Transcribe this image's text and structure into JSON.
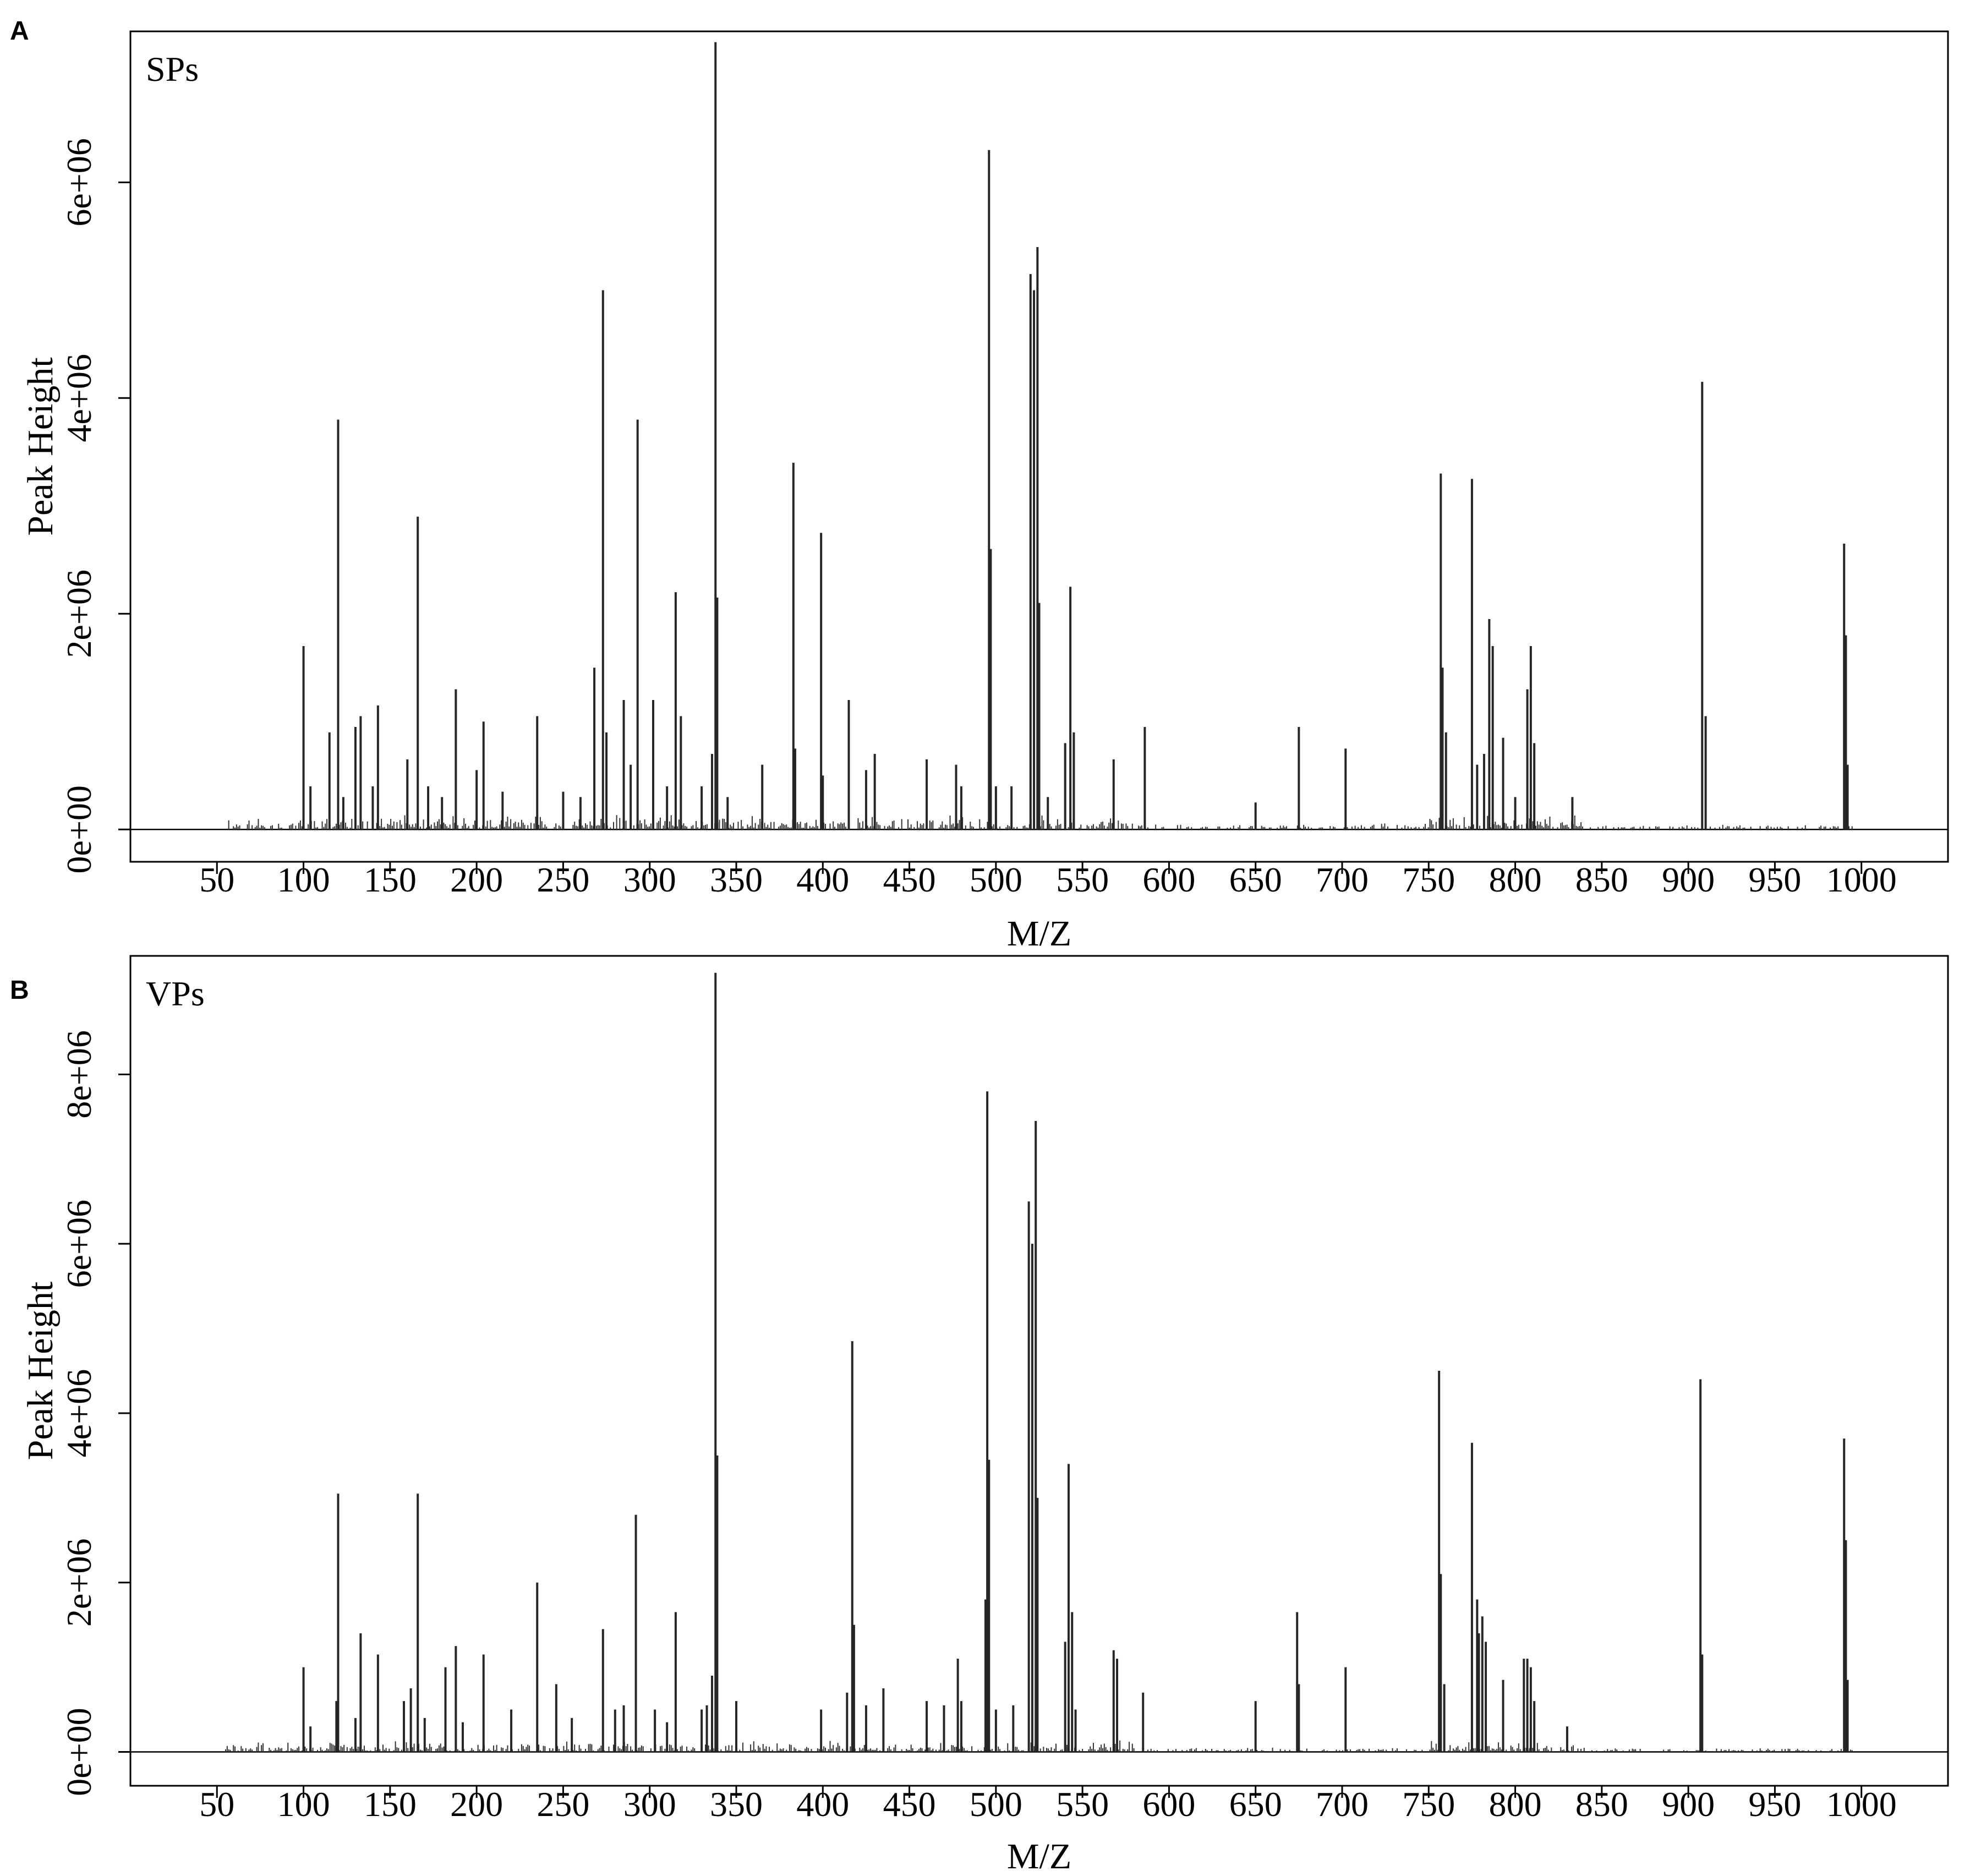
{
  "chart_data": [
    {
      "panel": "A",
      "label": "SPs",
      "type": "bar",
      "xlabel": "M/Z",
      "ylabel": "Peak Height",
      "xlim": [
        0,
        1050
      ],
      "ylim": [
        -300000,
        7400000
      ],
      "xticks": [
        50,
        100,
        150,
        200,
        250,
        300,
        350,
        400,
        450,
        500,
        550,
        600,
        650,
        700,
        750,
        800,
        850,
        900,
        950,
        1000
      ],
      "xtick_labels": [
        "50",
        "100",
        "150",
        "200",
        "250",
        "300",
        "350",
        "400",
        "450",
        "500",
        "550",
        "600",
        "650",
        "700",
        "750",
        "800",
        "850",
        "900",
        "950",
        "1000"
      ],
      "yticks": [
        0,
        2000000,
        4000000,
        6000000
      ],
      "ytick_labels": [
        "0e+00",
        "2e+06",
        "4e+06",
        "6e+06"
      ],
      "noise_seed": 11,
      "peaks": [
        [
          100,
          1700000
        ],
        [
          104,
          400000
        ],
        [
          115,
          900000
        ],
        [
          120,
          3800000
        ],
        [
          123,
          300000
        ],
        [
          130,
          950000
        ],
        [
          133,
          1050000
        ],
        [
          140,
          400000
        ],
        [
          143,
          1150000
        ],
        [
          160,
          650000
        ],
        [
          166,
          2900000
        ],
        [
          172,
          400000
        ],
        [
          180,
          300000
        ],
        [
          188,
          1300000
        ],
        [
          200,
          550000
        ],
        [
          204,
          1000000
        ],
        [
          215,
          350000
        ],
        [
          235,
          1050000
        ],
        [
          250,
          350000
        ],
        [
          260,
          300000
        ],
        [
          268,
          1500000
        ],
        [
          273,
          5000000
        ],
        [
          275,
          900000
        ],
        [
          285,
          1200000
        ],
        [
          289,
          600000
        ],
        [
          293,
          3800000
        ],
        [
          302,
          1200000
        ],
        [
          310,
          400000
        ],
        [
          315,
          2200000
        ],
        [
          318,
          1050000
        ],
        [
          330,
          400000
        ],
        [
          336,
          700000
        ],
        [
          338,
          7300000
        ],
        [
          339,
          2150000
        ],
        [
          345,
          300000
        ],
        [
          365,
          600000
        ],
        [
          383,
          3400000
        ],
        [
          384,
          750000
        ],
        [
          399,
          2750000
        ],
        [
          400,
          500000
        ],
        [
          415,
          1200000
        ],
        [
          425,
          550000
        ],
        [
          430,
          700000
        ],
        [
          460,
          650000
        ],
        [
          477,
          600000
        ],
        [
          480,
          400000
        ],
        [
          496,
          6300000
        ],
        [
          497,
          2600000
        ],
        [
          500,
          400000
        ],
        [
          509,
          400000
        ],
        [
          520,
          5150000
        ],
        [
          522,
          5000000
        ],
        [
          524,
          5400000
        ],
        [
          525,
          2100000
        ],
        [
          530,
          300000
        ],
        [
          540,
          800000
        ],
        [
          543,
          2250000
        ],
        [
          545,
          900000
        ],
        [
          568,
          650000
        ],
        [
          586,
          950000
        ],
        [
          650,
          250000
        ],
        [
          675,
          950000
        ],
        [
          702,
          750000
        ],
        [
          757,
          3300000
        ],
        [
          758,
          1500000
        ],
        [
          760,
          900000
        ],
        [
          775,
          3250000
        ],
        [
          778,
          600000
        ],
        [
          782,
          700000
        ],
        [
          785,
          1950000
        ],
        [
          787,
          1700000
        ],
        [
          793,
          850000
        ],
        [
          800,
          300000
        ],
        [
          807,
          1300000
        ],
        [
          809,
          1700000
        ],
        [
          811,
          800000
        ],
        [
          833,
          300000
        ],
        [
          908,
          4150000
        ],
        [
          910,
          1050000
        ],
        [
          990,
          2650000
        ],
        [
          991,
          1800000
        ],
        [
          992,
          600000
        ]
      ]
    },
    {
      "panel": "B",
      "label": "VPs",
      "type": "bar",
      "xlabel": "M/Z",
      "ylabel": "Peak Height",
      "xlim": [
        0,
        1050
      ],
      "ylim": [
        -400000,
        9400000
      ],
      "xticks": [
        50,
        100,
        150,
        200,
        250,
        300,
        350,
        400,
        450,
        500,
        550,
        600,
        650,
        700,
        750,
        800,
        850,
        900,
        950,
        1000
      ],
      "xtick_labels": [
        "50",
        "100",
        "150",
        "200",
        "250",
        "300",
        "350",
        "400",
        "450",
        "500",
        "550",
        "600",
        "650",
        "700",
        "750",
        "800",
        "850",
        "900",
        "950",
        "1000"
      ],
      "yticks": [
        0,
        2000000,
        4000000,
        6000000,
        8000000
      ],
      "ytick_labels": [
        "0e+00",
        "2e+06",
        "4e+06",
        "6e+06",
        "8e+06"
      ],
      "noise_seed": 29,
      "peaks": [
        [
          100,
          1000000
        ],
        [
          104,
          300000
        ],
        [
          119,
          600000
        ],
        [
          120,
          3050000
        ],
        [
          130,
          400000
        ],
        [
          133,
          1400000
        ],
        [
          143,
          1150000
        ],
        [
          158,
          600000
        ],
        [
          162,
          750000
        ],
        [
          166,
          3050000
        ],
        [
          170,
          400000
        ],
        [
          182,
          1000000
        ],
        [
          188,
          1250000
        ],
        [
          192,
          350000
        ],
        [
          204,
          1150000
        ],
        [
          220,
          500000
        ],
        [
          235,
          2000000
        ],
        [
          246,
          800000
        ],
        [
          255,
          400000
        ],
        [
          273,
          1450000
        ],
        [
          280,
          500000
        ],
        [
          285,
          550000
        ],
        [
          292,
          2800000
        ],
        [
          303,
          500000
        ],
        [
          310,
          350000
        ],
        [
          315,
          1650000
        ],
        [
          330,
          500000
        ],
        [
          333,
          550000
        ],
        [
          336,
          900000
        ],
        [
          338,
          9200000
        ],
        [
          339,
          3500000
        ],
        [
          350,
          600000
        ],
        [
          399,
          500000
        ],
        [
          414,
          700000
        ],
        [
          417,
          4850000
        ],
        [
          418,
          1500000
        ],
        [
          425,
          550000
        ],
        [
          435,
          750000
        ],
        [
          460,
          600000
        ],
        [
          470,
          550000
        ],
        [
          478,
          1100000
        ],
        [
          480,
          600000
        ],
        [
          494,
          1800000
        ],
        [
          495,
          7800000
        ],
        [
          496,
          3450000
        ],
        [
          500,
          500000
        ],
        [
          510,
          550000
        ],
        [
          519,
          6500000
        ],
        [
          521,
          6000000
        ],
        [
          523,
          7450000
        ],
        [
          524,
          3000000
        ],
        [
          540,
          1300000
        ],
        [
          542,
          3400000
        ],
        [
          544,
          1650000
        ],
        [
          546,
          500000
        ],
        [
          568,
          1200000
        ],
        [
          570,
          1100000
        ],
        [
          585,
          700000
        ],
        [
          650,
          600000
        ],
        [
          674,
          1650000
        ],
        [
          675,
          800000
        ],
        [
          702,
          1000000
        ],
        [
          756,
          4500000
        ],
        [
          757,
          2100000
        ],
        [
          759,
          800000
        ],
        [
          775,
          3650000
        ],
        [
          778,
          1800000
        ],
        [
          779,
          1400000
        ],
        [
          781,
          1600000
        ],
        [
          783,
          1300000
        ],
        [
          793,
          850000
        ],
        [
          805,
          1100000
        ],
        [
          807,
          1100000
        ],
        [
          809,
          1000000
        ],
        [
          811,
          600000
        ],
        [
          830,
          300000
        ],
        [
          907,
          4400000
        ],
        [
          908,
          1150000
        ],
        [
          990,
          3700000
        ],
        [
          991,
          2500000
        ],
        [
          992,
          850000
        ]
      ]
    }
  ]
}
